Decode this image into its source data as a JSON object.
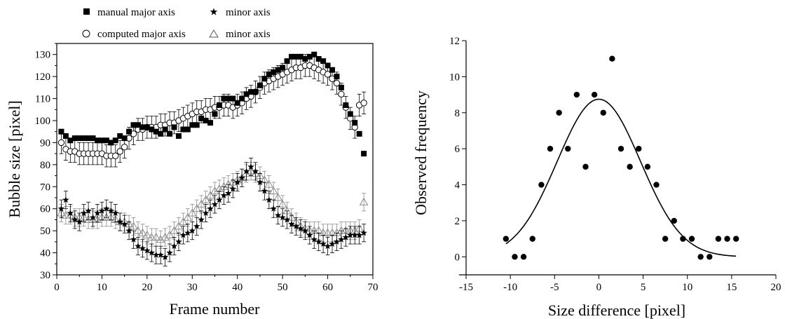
{
  "chart_data": [
    {
      "type": "scatter",
      "title": "",
      "xlabel": "Frame number",
      "ylabel": "Bubble size [pixel]",
      "xlim": [
        0,
        70
      ],
      "ylim": [
        30,
        135
      ],
      "x_ticks": [
        "0",
        "10",
        "20",
        "30",
        "40",
        "50",
        "60",
        "70"
      ],
      "y_ticks": [
        "30",
        "40",
        "50",
        "60",
        "70",
        "80",
        "90",
        "100",
        "110",
        "120",
        "130"
      ],
      "grid": false,
      "legend_position": "top",
      "legend": [
        {
          "label": "manual major axis",
          "marker": "square-filled"
        },
        {
          "label": "minor axis",
          "marker": "star-filled"
        },
        {
          "label": "computed major axis",
          "marker": "circle-open"
        },
        {
          "label": "minor axis",
          "marker": "triangle-open"
        }
      ],
      "x": [
        1,
        2,
        3,
        4,
        5,
        6,
        7,
        8,
        9,
        10,
        11,
        12,
        13,
        14,
        15,
        16,
        17,
        18,
        19,
        20,
        21,
        22,
        23,
        24,
        25,
        26,
        27,
        28,
        29,
        30,
        31,
        32,
        33,
        34,
        35,
        36,
        37,
        38,
        39,
        40,
        41,
        42,
        43,
        44,
        45,
        46,
        47,
        48,
        49,
        50,
        51,
        52,
        53,
        54,
        55,
        56,
        57,
        58,
        59,
        60,
        61,
        62,
        63,
        64,
        65,
        66,
        67,
        68
      ],
      "series": [
        {
          "name": "manual major axis",
          "marker": "square-filled",
          "color": "#000000",
          "error": 0,
          "values": [
            95,
            93,
            91,
            92,
            92,
            92,
            92,
            92,
            91,
            91,
            91,
            90,
            91,
            93,
            92,
            95,
            98,
            98,
            97,
            97,
            96,
            95,
            94,
            96,
            94,
            97,
            93,
            96,
            96,
            98,
            98,
            101,
            100,
            99,
            103,
            107,
            110,
            110,
            110,
            108,
            110,
            112,
            113,
            113,
            116,
            119,
            121,
            122,
            123,
            124,
            127,
            129,
            129,
            129,
            128,
            129,
            130,
            128,
            127,
            125,
            123,
            120,
            115,
            107,
            103,
            99,
            94,
            85
          ]
        },
        {
          "name": "computed major axis",
          "marker": "circle-open",
          "color": "#000000",
          "error": 5,
          "values": [
            90,
            87,
            86,
            86,
            85,
            85,
            85,
            85,
            85,
            85,
            84,
            84,
            84,
            86,
            88,
            92,
            94,
            96,
            96,
            97,
            97,
            97,
            98,
            98,
            99,
            99,
            100,
            101,
            102,
            103,
            104,
            104,
            105,
            105,
            106,
            106,
            107,
            107,
            106,
            107,
            108,
            110,
            111,
            113,
            115,
            117,
            118,
            119,
            120,
            121,
            122,
            123,
            124,
            124,
            125,
            125,
            124,
            123,
            122,
            121,
            119,
            117,
            112,
            106,
            101,
            97,
            107,
            108
          ]
        },
        {
          "name": "minor axis",
          "marker": "star-filled",
          "color": "#000000",
          "error": 4,
          "values": [
            60,
            64,
            58,
            55,
            54,
            58,
            59,
            56,
            58,
            59,
            60,
            59,
            58,
            54,
            53,
            50,
            46,
            43,
            42,
            41,
            40,
            39,
            39,
            38,
            40,
            43,
            45,
            48,
            49,
            50,
            52,
            55,
            58,
            60,
            62,
            64,
            66,
            67,
            69,
            72,
            74,
            77,
            79,
            77,
            72,
            68,
            64,
            60,
            57,
            56,
            55,
            53,
            52,
            51,
            50,
            48,
            46,
            45,
            44,
            43,
            44,
            45,
            46,
            47,
            48,
            48,
            48,
            49
          ]
        },
        {
          "name": "minor axis",
          "marker": "triangle-open",
          "color": "#8a8a8a",
          "error": 4,
          "values": [
            58,
            57,
            57,
            56,
            56,
            56,
            55,
            55,
            55,
            56,
            56,
            56,
            55,
            54,
            54,
            53,
            52,
            50,
            49,
            48,
            47,
            47,
            46,
            47,
            48,
            50,
            52,
            54,
            56,
            58,
            60,
            62,
            64,
            66,
            68,
            69,
            70,
            71,
            72,
            73,
            74,
            76,
            77,
            76,
            75,
            73,
            71,
            68,
            65,
            62,
            59,
            56,
            54,
            52,
            51,
            50,
            50,
            50,
            49,
            49,
            49,
            49,
            50,
            50,
            50,
            50,
            51,
            63
          ]
        }
      ]
    },
    {
      "type": "scatter",
      "title": "",
      "xlabel": "Size difference [pixel]",
      "ylabel": "Observed frequency",
      "xlim": [
        -15,
        20
      ],
      "ylim": [
        -1,
        12
      ],
      "x_ticks": [
        "-15",
        "-10",
        "-5",
        "0",
        "5",
        "10",
        "15",
        "20"
      ],
      "y_ticks": [
        "0",
        "2",
        "4",
        "6",
        "8",
        "10",
        "12"
      ],
      "grid": false,
      "series": [
        {
          "marker": "circle-filled",
          "color": "#000000",
          "points": [
            [
              -10.5,
              1
            ],
            [
              -9.5,
              0
            ],
            [
              -8.5,
              0
            ],
            [
              -7.5,
              1
            ],
            [
              -6.5,
              4
            ],
            [
              -5.5,
              6
            ],
            [
              -4.5,
              8
            ],
            [
              -3.5,
              6
            ],
            [
              -2.5,
              9
            ],
            [
              -1.5,
              5
            ],
            [
              -0.5,
              9
            ],
            [
              0.5,
              8
            ],
            [
              1.5,
              11
            ],
            [
              2.5,
              6
            ],
            [
              3.5,
              5
            ],
            [
              4.5,
              6
            ],
            [
              5.5,
              5
            ],
            [
              6.5,
              4
            ],
            [
              7.5,
              1
            ],
            [
              8.5,
              2
            ],
            [
              9.5,
              1
            ],
            [
              10.5,
              1
            ],
            [
              11.5,
              0
            ],
            [
              12.5,
              0
            ],
            [
              13.5,
              1
            ],
            [
              14.5,
              1
            ],
            [
              15.5,
              1
            ]
          ]
        },
        {
          "type": "line",
          "fit": "gaussian",
          "color": "#000000",
          "amplitude": 8.75,
          "center": 0,
          "sigma": 4.7,
          "x_range": [
            -10.5,
            15.5
          ]
        }
      ]
    }
  ]
}
